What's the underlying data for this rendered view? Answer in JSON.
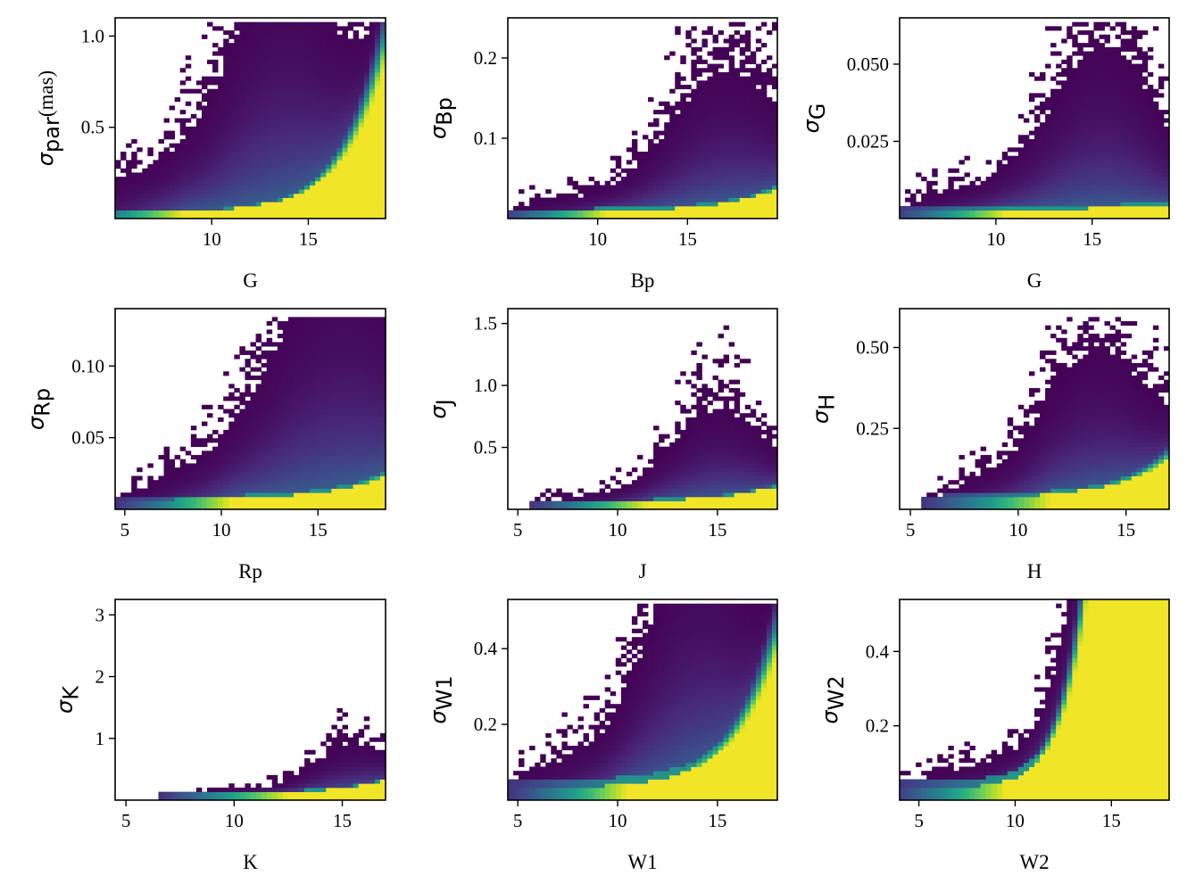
{
  "chart_data": [
    {
      "type": "heatmap",
      "xlabel": "G",
      "ylabel_sym": "σ",
      "ylabel_sub": "par",
      "ylabel_unit": "(mas)",
      "xlim": [
        5.0,
        19.0
      ],
      "ylim": [
        0.0,
        1.1
      ],
      "xticks": [
        10,
        15
      ],
      "yticks": [
        "0.5",
        "1.0"
      ],
      "ytick_values": [
        0.5,
        1.0
      ],
      "density": {
        "curve_a": 0.01,
        "curve_b": 0.0015,
        "curve_k": 0.45,
        "x0": 5.0,
        "spread_base": 0.12,
        "spread_peak": 0.4,
        "spread_center": 13.5,
        "spread_width": 3.5,
        "max_y": 1.08,
        "floor": 0.006
      }
    },
    {
      "type": "heatmap",
      "xlabel": "Bp",
      "ylabel_sym": "σ",
      "ylabel_sub": "Bp",
      "ylabel_unit": "",
      "xlim": [
        5.0,
        20.0
      ],
      "ylim": [
        0.0,
        0.25
      ],
      "xticks": [
        10,
        15
      ],
      "yticks": [
        "0.1",
        "0.2"
      ],
      "ytick_values": [
        0.1,
        0.2
      ],
      "density": {
        "curve_a": 0.004,
        "curve_b": 0.0003,
        "curve_k": 0.35,
        "x0": 7.0,
        "spread_base": 0.01,
        "spread_peak": 0.06,
        "spread_center": 17.0,
        "spread_width": 4.0,
        "max_y": 0.245,
        "floor": 0.003
      }
    },
    {
      "type": "heatmap",
      "xlabel": "G",
      "ylabel_sym": "σ",
      "ylabel_sub": "G",
      "ylabel_unit": "",
      "xlim": [
        5.0,
        19.0
      ],
      "ylim": [
        0.0,
        0.065
      ],
      "xticks": [
        10,
        15
      ],
      "yticks": [
        "0.025",
        "0.050"
      ],
      "ytick_values": [
        0.025,
        0.05
      ],
      "density": {
        "curve_a": 0.0015,
        "curve_b": 5e-05,
        "curve_k": 0.3,
        "x0": 7.0,
        "spread_base": 0.004,
        "spread_peak": 0.018,
        "spread_center": 15.5,
        "spread_width": 3.5,
        "max_y": 0.063,
        "floor": 0.001
      }
    },
    {
      "type": "heatmap",
      "xlabel": "Rp",
      "ylabel_sym": "σ",
      "ylabel_sub": "Rp",
      "ylabel_unit": "",
      "xlim": [
        4.5,
        18.5
      ],
      "ylim": [
        0.0,
        0.14
      ],
      "xticks": [
        5,
        10,
        15
      ],
      "yticks": [
        "0.05",
        "0.10"
      ],
      "ytick_values": [
        0.05,
        0.1
      ],
      "density": {
        "curve_a": 0.004,
        "curve_b": 0.0003,
        "curve_k": 0.35,
        "x0": 7.0,
        "spread_base": 0.01,
        "spread_peak": 0.055,
        "spread_center": 16.0,
        "spread_width": 4.5,
        "max_y": 0.135,
        "floor": 0.002
      }
    },
    {
      "type": "heatmap",
      "xlabel": "J",
      "ylabel_sym": "σ",
      "ylabel_sub": "J",
      "ylabel_unit": "",
      "xlim": [
        4.5,
        18.0
      ],
      "ylim": [
        0.0,
        1.62
      ],
      "xticks": [
        5,
        10,
        15
      ],
      "yticks": [
        "0.5",
        "1.0",
        "1.5"
      ],
      "ytick_values": [
        0.5,
        1.0,
        1.5
      ],
      "density": {
        "curve_a": 0.025,
        "curve_b": 0.004,
        "curve_k": 0.35,
        "x0": 8.0,
        "spread_base": 0.05,
        "spread_peak": 0.25,
        "spread_center": 15.0,
        "spread_width": 3.0,
        "max_y": 1.6,
        "floor": 0.01
      }
    },
    {
      "type": "heatmap",
      "xlabel": "H",
      "ylabel_sym": "σ",
      "ylabel_sub": "H",
      "ylabel_unit": "",
      "xlim": [
        4.5,
        17.0
      ],
      "ylim": [
        0.0,
        0.62
      ],
      "xticks": [
        5,
        10,
        15
      ],
      "yticks": [
        "0.25",
        "0.50"
      ],
      "ytick_values": [
        0.25,
        0.5
      ],
      "density": {
        "curve_a": 0.02,
        "curve_b": 0.004,
        "curve_k": 0.38,
        "x0": 8.0,
        "spread_base": 0.04,
        "spread_peak": 0.14,
        "spread_center": 13.5,
        "spread_width": 3.0,
        "max_y": 0.6,
        "floor": 0.01
      }
    },
    {
      "type": "heatmap",
      "xlabel": "K",
      "ylabel_sym": "σ",
      "ylabel_sub": "K",
      "ylabel_unit": "",
      "xlim": [
        4.5,
        17.0
      ],
      "ylim": [
        0.0,
        3.25
      ],
      "xticks": [
        5,
        10,
        15
      ],
      "yticks": [
        "1",
        "2",
        "3"
      ],
      "ytick_values": [
        1,
        2,
        3
      ],
      "density": {
        "curve_a": 0.04,
        "curve_b": 0.006,
        "curve_k": 0.45,
        "x0": 9.0,
        "spread_base": 0.05,
        "spread_peak": 0.25,
        "spread_center": 15.5,
        "spread_width": 2.5,
        "max_y": 3.2,
        "floor": 0.02
      }
    },
    {
      "type": "heatmap",
      "xlabel": "W1",
      "ylabel_sym": "σ",
      "ylabel_sub": "W1",
      "ylabel_unit": "",
      "xlim": [
        4.5,
        18.0
      ],
      "ylim": [
        0.0,
        0.53
      ],
      "xticks": [
        5,
        10,
        15
      ],
      "yticks": [
        "0.2",
        "0.4"
      ],
      "ytick_values": [
        0.2,
        0.4
      ],
      "density": {
        "curve_a": 0.02,
        "curve_b": 0.0025,
        "curve_k": 0.45,
        "x0": 7.0,
        "spread_base": 0.05,
        "spread_peak": 0.2,
        "spread_center": 13.8,
        "spread_width": 3.0,
        "max_y": 0.52,
        "floor": 0.02
      }
    },
    {
      "type": "heatmap",
      "xlabel": "W2",
      "ylabel_sym": "σ",
      "ylabel_sub": "W2",
      "ylabel_unit": "",
      "xlim": [
        4.0,
        18.0
      ],
      "ylim": [
        0.0,
        0.54
      ],
      "xticks": [
        5,
        10,
        15
      ],
      "yticks": [
        "0.2",
        "0.4"
      ],
      "ytick_values": [
        0.2,
        0.4
      ],
      "density": {
        "curve_a": 0.02,
        "curve_b": 0.0015,
        "curve_k": 0.75,
        "x0": 6.0,
        "spread_base": 0.03,
        "spread_peak": 0.18,
        "spread_center": 15.5,
        "spread_width": 3.0,
        "max_y": 0.54,
        "floor": 0.02
      }
    }
  ],
  "colormap": [
    "#440154",
    "#482878",
    "#3e4989",
    "#31688e",
    "#26828e",
    "#1f9e89",
    "#35b779",
    "#6ece58",
    "#b5de2b",
    "#fde725"
  ]
}
